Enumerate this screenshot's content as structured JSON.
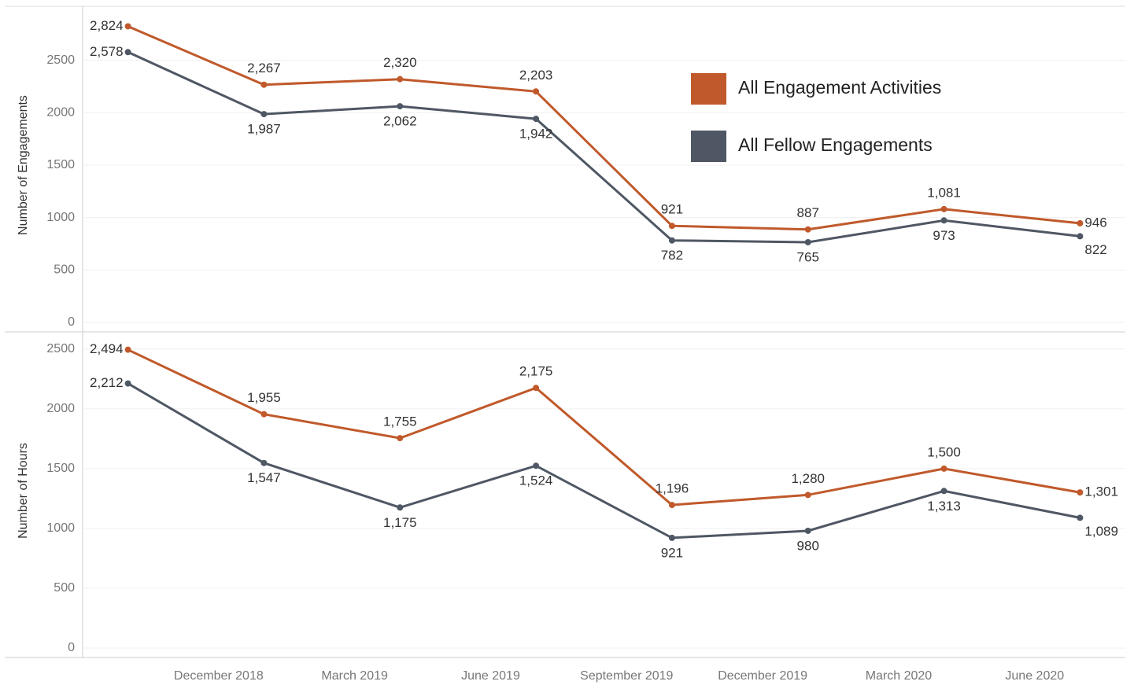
{
  "chart_data": [
    {
      "type": "line",
      "ylabel": "Number of Engagements",
      "x": [
        "2018-10",
        "2019-01",
        "2019-04",
        "2019-07",
        "2019-10",
        "2020-01",
        "2020-04",
        "2020-07"
      ],
      "series": [
        {
          "name": "All Engagement Activities",
          "color": "#c0592b",
          "values": [
            2824,
            2267,
            2320,
            2203,
            921,
            887,
            1081,
            946
          ],
          "value_labels": [
            "2,824",
            "2,267",
            "2,320",
            "2,203",
            "921",
            "887",
            "1,081",
            "946"
          ]
        },
        {
          "name": "All Fellow Engagements",
          "color": "#4f5764",
          "values": [
            2578,
            1987,
            2062,
            1942,
            782,
            765,
            973,
            822
          ],
          "value_labels": [
            "2,578",
            "1,987",
            "2,062",
            "1,942",
            "782",
            "765",
            "973",
            "822"
          ]
        }
      ],
      "xlim": [
        "2018-09",
        "2020-08"
      ],
      "ylim": [
        0,
        3000
      ],
      "yticks": [
        0,
        500,
        1000,
        1500,
        2000,
        2500
      ],
      "grid": true,
      "legend": "top-right"
    },
    {
      "type": "line",
      "ylabel": "Number of Hours",
      "x": [
        "2018-10",
        "2019-01",
        "2019-04",
        "2019-07",
        "2019-10",
        "2020-01",
        "2020-04",
        "2020-07"
      ],
      "series": [
        {
          "name": "All Engagement Activities",
          "color": "#c0592b",
          "values": [
            2494,
            1955,
            1755,
            2175,
            1196,
            1280,
            1500,
            1301
          ],
          "value_labels": [
            "2,494",
            "1,955",
            "1,755",
            "2,175",
            "1,196",
            "1,280",
            "1,500",
            "1,301"
          ]
        },
        {
          "name": "All Fellow Engagements",
          "color": "#4f5764",
          "values": [
            2212,
            1547,
            1175,
            1524,
            921,
            980,
            1313,
            1089
          ],
          "value_labels": [
            "2,212",
            "1,547",
            "1,175",
            "1,524",
            "921",
            "980",
            "1,313",
            "1,089"
          ]
        }
      ],
      "xlim": [
        "2018-09",
        "2020-08"
      ],
      "xticks": [
        {
          "value": "2018-12",
          "label": "December 2018"
        },
        {
          "value": "2019-03",
          "label": "March 2019"
        },
        {
          "value": "2019-06",
          "label": "June 2019"
        },
        {
          "value": "2019-09",
          "label": "September 2019"
        },
        {
          "value": "2019-12",
          "label": "December 2019"
        },
        {
          "value": "2020-03",
          "label": "March 2020"
        },
        {
          "value": "2020-06",
          "label": "June 2020"
        }
      ],
      "ylim": [
        0,
        2630
      ],
      "yticks": [
        0,
        500,
        1000,
        1500,
        2000,
        2500
      ],
      "grid": true
    }
  ]
}
